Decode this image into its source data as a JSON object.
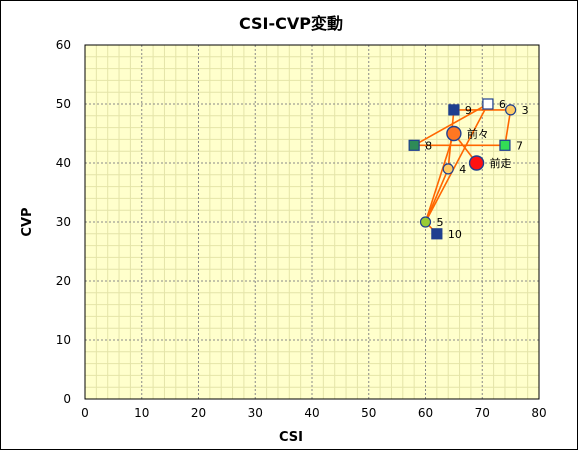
{
  "chart_data": {
    "type": "scatter",
    "title": "CSI-CVP変動",
    "xlabel": "CSI",
    "ylabel": "CVP",
    "xlim": [
      0,
      80
    ],
    "ylim": [
      0,
      60
    ],
    "x_ticks": [
      0,
      10,
      20,
      30,
      40,
      50,
      60,
      70,
      80
    ],
    "y_ticks": [
      0,
      10,
      20,
      30,
      40,
      50,
      60
    ],
    "grid": true,
    "plot_background": "#ffffcc",
    "line_color": "#ff6600",
    "path_order": [
      "10",
      "5",
      "4",
      "9",
      "3",
      "7",
      "8",
      "6",
      "5",
      "前々",
      "前走"
    ],
    "points": [
      {
        "label": "10",
        "x": 62,
        "y": 28,
        "marker": "square",
        "fill": "#1f3f8f"
      },
      {
        "label": "9",
        "x": 65,
        "y": 49,
        "marker": "square",
        "fill": "#1f3f8f"
      },
      {
        "label": "8",
        "x": 58,
        "y": 43,
        "marker": "square",
        "fill": "#2e8b57"
      },
      {
        "label": "7",
        "x": 74,
        "y": 43,
        "marker": "square",
        "fill": "#33dd55"
      },
      {
        "label": "6",
        "x": 71,
        "y": 50,
        "marker": "square",
        "fill": "#ffffff"
      },
      {
        "label": "5",
        "x": 60,
        "y": 30,
        "marker": "circle",
        "fill": "#99cc33"
      },
      {
        "label": "4",
        "x": 64,
        "y": 39,
        "marker": "circle",
        "fill": "#ffcc66"
      },
      {
        "label": "3",
        "x": 75,
        "y": 49,
        "marker": "circle",
        "fill": "#ffcc66"
      },
      {
        "label": "前々",
        "x": 65,
        "y": 45,
        "marker": "circle-large",
        "fill": "#ff7722"
      },
      {
        "label": "前走",
        "x": 69,
        "y": 40,
        "marker": "circle-large",
        "fill": "#ff1111"
      }
    ]
  }
}
